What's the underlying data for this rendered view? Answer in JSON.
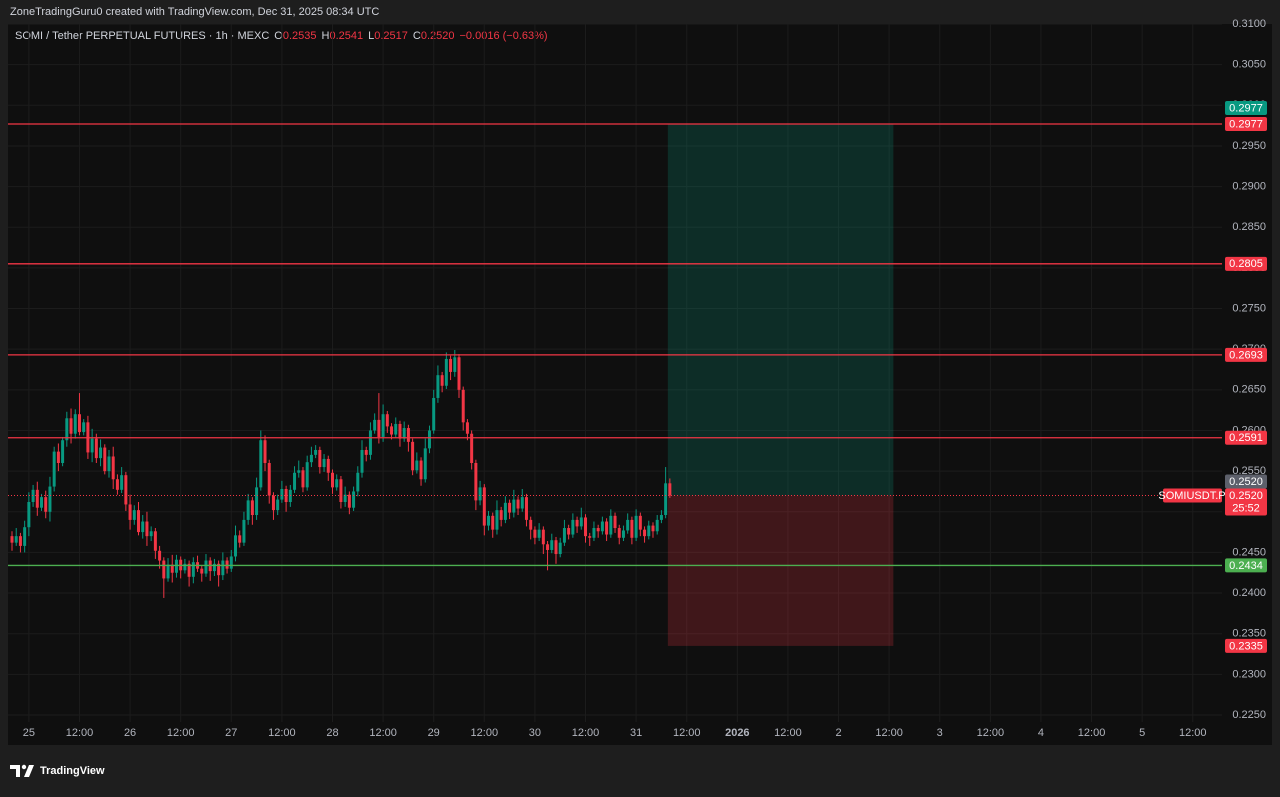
{
  "header": {
    "text": "ZoneTradingGuru0 created with TradingView.com, Dec 31, 2025 08:34 UTC"
  },
  "footer": {
    "brand": "TradingView"
  },
  "legend": {
    "symbol": "SOMI / Tether PERPETUAL FUTURES · 1h · MEXC",
    "fields": [
      {
        "label": "O",
        "value": "0.2535"
      },
      {
        "label": "H",
        "value": "0.2541"
      },
      {
        "label": "L",
        "value": "0.2517"
      },
      {
        "label": "C",
        "value": "0.2520"
      }
    ],
    "change": "−0.0016 (−0.63%)"
  },
  "chart_data": {
    "type": "candlestick",
    "up_color": "#089981",
    "down_color": "#f23645",
    "grid": true,
    "ylim": [
      0.225,
      0.31
    ],
    "yticks": [
      {
        "value": 0.225,
        "label": "0.2250"
      },
      {
        "value": 0.23,
        "label": "0.2300"
      },
      {
        "value": 0.235,
        "label": "0.2350"
      },
      {
        "value": 0.24,
        "label": "0.2400"
      },
      {
        "value": 0.245,
        "label": "0.2450"
      },
      {
        "value": 0.25,
        "label": "0.2500"
      },
      {
        "value": 0.255,
        "label": "0.2550"
      },
      {
        "value": 0.26,
        "label": "0.2600"
      },
      {
        "value": 0.265,
        "label": "0.2650"
      },
      {
        "value": 0.27,
        "label": "0.2700"
      },
      {
        "value": 0.275,
        "label": "0.2750"
      },
      {
        "value": 0.28,
        "label": "0.2800"
      },
      {
        "value": 0.285,
        "label": "0.2850"
      },
      {
        "value": 0.29,
        "label": "0.2900"
      },
      {
        "value": 0.295,
        "label": "0.2950"
      },
      {
        "value": 0.3,
        "label": "0.3000"
      },
      {
        "value": 0.305,
        "label": "0.3050"
      },
      {
        "value": 0.31,
        "label": "0.3100"
      }
    ],
    "time_labels": [
      "25",
      "12:00",
      "26",
      "12:00",
      "27",
      "12:00",
      "28",
      "12:00",
      "29",
      "12:00",
      "30",
      "12:00",
      "31",
      "12:00",
      "2026",
      "12:00",
      "2",
      "12:00",
      "3",
      "12:00",
      "4",
      "12:00",
      "5",
      "12:00"
    ],
    "ohlc": [
      [
        0.247,
        0.2476,
        0.2452,
        0.2462
      ],
      [
        0.2462,
        0.248,
        0.2458,
        0.247
      ],
      [
        0.247,
        0.2474,
        0.245,
        0.2458
      ],
      [
        0.2458,
        0.2489,
        0.245,
        0.2481
      ],
      [
        0.2481,
        0.2524,
        0.247,
        0.2512
      ],
      [
        0.2512,
        0.2533,
        0.2506,
        0.2527
      ],
      [
        0.2527,
        0.2537,
        0.2495,
        0.2505
      ],
      [
        0.2505,
        0.2522,
        0.2501,
        0.2518
      ],
      [
        0.2518,
        0.2526,
        0.2492,
        0.25
      ],
      [
        0.25,
        0.2543,
        0.2488,
        0.2531
      ],
      [
        0.2531,
        0.258,
        0.2525,
        0.2574
      ],
      [
        0.2574,
        0.2584,
        0.255,
        0.256
      ],
      [
        0.256,
        0.2592,
        0.2556,
        0.2588
      ],
      [
        0.2588,
        0.2623,
        0.258,
        0.2615
      ],
      [
        0.2615,
        0.2627,
        0.2584,
        0.2596
      ],
      [
        0.2596,
        0.2626,
        0.259,
        0.262
      ],
      [
        0.262,
        0.2646,
        0.2594,
        0.2598
      ],
      [
        0.2598,
        0.2614,
        0.2594,
        0.261
      ],
      [
        0.261,
        0.2618,
        0.2565,
        0.2573
      ],
      [
        0.2573,
        0.2602,
        0.2561,
        0.259
      ],
      [
        0.259,
        0.2596,
        0.256,
        0.2566
      ],
      [
        0.2566,
        0.2589,
        0.2556,
        0.2579
      ],
      [
        0.2579,
        0.2583,
        0.2546,
        0.255
      ],
      [
        0.255,
        0.2576,
        0.2542,
        0.2568
      ],
      [
        0.2568,
        0.258,
        0.2528,
        0.254
      ],
      [
        0.254,
        0.2546,
        0.2521,
        0.2527
      ],
      [
        0.2527,
        0.2555,
        0.2523,
        0.2545
      ],
      [
        0.2545,
        0.2549,
        0.2501,
        0.2509
      ],
      [
        0.2509,
        0.2521,
        0.2478,
        0.249
      ],
      [
        0.249,
        0.2508,
        0.2484,
        0.2502
      ],
      [
        0.2502,
        0.2512,
        0.2471,
        0.2475
      ],
      [
        0.2475,
        0.2496,
        0.2467,
        0.2488
      ],
      [
        0.2488,
        0.25,
        0.2458,
        0.247
      ],
      [
        0.247,
        0.2482,
        0.2464,
        0.2476
      ],
      [
        0.2476,
        0.248,
        0.2442,
        0.2452
      ],
      [
        0.2452,
        0.2458,
        0.243,
        0.244
      ],
      [
        0.244,
        0.2444,
        0.2394,
        0.2418
      ],
      [
        0.2418,
        0.2443,
        0.2414,
        0.2435
      ],
      [
        0.2435,
        0.2447,
        0.2413,
        0.2425
      ],
      [
        0.2425,
        0.2447,
        0.2419,
        0.2441
      ],
      [
        0.2441,
        0.2445,
        0.2418,
        0.2428
      ],
      [
        0.2428,
        0.2442,
        0.2424,
        0.2436
      ],
      [
        0.2436,
        0.244,
        0.2408,
        0.242
      ],
      [
        0.242,
        0.2444,
        0.2412,
        0.2438
      ],
      [
        0.2438,
        0.2446,
        0.2426,
        0.243
      ],
      [
        0.243,
        0.2434,
        0.2414,
        0.2424
      ],
      [
        0.2424,
        0.2448,
        0.242,
        0.244
      ],
      [
        0.244,
        0.2444,
        0.2415,
        0.2427
      ],
      [
        0.2427,
        0.2442,
        0.2421,
        0.2436
      ],
      [
        0.2436,
        0.244,
        0.2408,
        0.2422
      ],
      [
        0.2422,
        0.245,
        0.2416,
        0.244
      ],
      [
        0.244,
        0.2444,
        0.2424,
        0.243
      ],
      [
        0.243,
        0.2453,
        0.2426,
        0.2445
      ],
      [
        0.2445,
        0.2483,
        0.2439,
        0.2471
      ],
      [
        0.2471,
        0.2477,
        0.2456,
        0.2462
      ],
      [
        0.2462,
        0.25,
        0.2458,
        0.249
      ],
      [
        0.249,
        0.2522,
        0.2484,
        0.2514
      ],
      [
        0.2514,
        0.2518,
        0.2484,
        0.2496
      ],
      [
        0.2496,
        0.2542,
        0.249,
        0.253
      ],
      [
        0.253,
        0.26,
        0.2526,
        0.2588
      ],
      [
        0.2588,
        0.2594,
        0.255,
        0.256
      ],
      [
        0.256,
        0.2564,
        0.251,
        0.252
      ],
      [
        0.252,
        0.2524,
        0.249,
        0.2502
      ],
      [
        0.2502,
        0.2521,
        0.2496,
        0.2515
      ],
      [
        0.2515,
        0.2538,
        0.2511,
        0.2528
      ],
      [
        0.2528,
        0.2532,
        0.25,
        0.2512
      ],
      [
        0.2512,
        0.2533,
        0.2506,
        0.2527
      ],
      [
        0.2527,
        0.2556,
        0.2523,
        0.2548
      ],
      [
        0.2548,
        0.2563,
        0.2542,
        0.2551
      ],
      [
        0.2551,
        0.2555,
        0.2524,
        0.253
      ],
      [
        0.253,
        0.2569,
        0.2526,
        0.2561
      ],
      [
        0.2561,
        0.258,
        0.2555,
        0.257
      ],
      [
        0.257,
        0.2582,
        0.2566,
        0.2576
      ],
      [
        0.2576,
        0.258,
        0.2547,
        0.2555
      ],
      [
        0.2555,
        0.2571,
        0.2549,
        0.2565
      ],
      [
        0.2565,
        0.2569,
        0.2538,
        0.2548
      ],
      [
        0.2548,
        0.2552,
        0.2522,
        0.253
      ],
      [
        0.253,
        0.2546,
        0.2526,
        0.254
      ],
      [
        0.254,
        0.2544,
        0.2504,
        0.2512
      ],
      [
        0.2512,
        0.2531,
        0.2506,
        0.2521
      ],
      [
        0.2521,
        0.2525,
        0.2497,
        0.2505
      ],
      [
        0.2505,
        0.2531,
        0.2501,
        0.2525
      ],
      [
        0.2525,
        0.2556,
        0.2519,
        0.2548
      ],
      [
        0.2548,
        0.2588,
        0.2542,
        0.2576
      ],
      [
        0.2576,
        0.258,
        0.2562,
        0.257
      ],
      [
        0.257,
        0.261,
        0.2564,
        0.26
      ],
      [
        0.26,
        0.2621,
        0.2596,
        0.2613
      ],
      [
        0.2613,
        0.2646,
        0.2584,
        0.2592
      ],
      [
        0.2592,
        0.2632,
        0.2586,
        0.262
      ],
      [
        0.262,
        0.2624,
        0.2597,
        0.2605
      ],
      [
        0.2605,
        0.2609,
        0.2589,
        0.2595
      ],
      [
        0.2595,
        0.2616,
        0.2591,
        0.2608
      ],
      [
        0.2608,
        0.2612,
        0.258,
        0.259
      ],
      [
        0.259,
        0.2611,
        0.2586,
        0.2603
      ],
      [
        0.2603,
        0.2607,
        0.2574,
        0.2586
      ],
      [
        0.2586,
        0.259,
        0.2545,
        0.2551
      ],
      [
        0.2551,
        0.2573,
        0.2547,
        0.2563
      ],
      [
        0.2563,
        0.2567,
        0.2532,
        0.254
      ],
      [
        0.254,
        0.259,
        0.2536,
        0.2578
      ],
      [
        0.2578,
        0.2606,
        0.2572,
        0.26
      ],
      [
        0.26,
        0.265,
        0.2596,
        0.264
      ],
      [
        0.264,
        0.268,
        0.2634,
        0.2668
      ],
      [
        0.2668,
        0.2672,
        0.2647,
        0.2655
      ],
      [
        0.2655,
        0.2696,
        0.2651,
        0.2688
      ],
      [
        0.2688,
        0.2692,
        0.2662,
        0.2672
      ],
      [
        0.2672,
        0.2699,
        0.2666,
        0.269
      ],
      [
        0.269,
        0.2694,
        0.264,
        0.265
      ],
      [
        0.265,
        0.2654,
        0.26,
        0.261
      ],
      [
        0.261,
        0.2614,
        0.2588,
        0.2596
      ],
      [
        0.2596,
        0.26,
        0.2552,
        0.256
      ],
      [
        0.256,
        0.2564,
        0.2502,
        0.2514
      ],
      [
        0.2514,
        0.2538,
        0.2508,
        0.253
      ],
      [
        0.253,
        0.2534,
        0.2471,
        0.2483
      ],
      [
        0.2483,
        0.2501,
        0.2477,
        0.2495
      ],
      [
        0.2495,
        0.2499,
        0.2468,
        0.2478
      ],
      [
        0.2478,
        0.2514,
        0.2472,
        0.2502
      ],
      [
        0.2502,
        0.2506,
        0.2482,
        0.249
      ],
      [
        0.249,
        0.2519,
        0.2486,
        0.2511
      ],
      [
        0.2511,
        0.2515,
        0.2491,
        0.2499
      ],
      [
        0.2499,
        0.2527,
        0.2493,
        0.2515
      ],
      [
        0.2515,
        0.2519,
        0.2496,
        0.2504
      ],
      [
        0.2504,
        0.2528,
        0.25,
        0.2518
      ],
      [
        0.2518,
        0.2522,
        0.2482,
        0.249
      ],
      [
        0.249,
        0.2494,
        0.2466,
        0.2478
      ],
      [
        0.2478,
        0.2482,
        0.246,
        0.2468
      ],
      [
        0.2468,
        0.2486,
        0.2464,
        0.2478
      ],
      [
        0.2478,
        0.2482,
        0.2448,
        0.246
      ],
      [
        0.246,
        0.2464,
        0.2428,
        0.2453
      ],
      [
        0.2453,
        0.2473,
        0.2449,
        0.2465
      ],
      [
        0.2465,
        0.2469,
        0.2436,
        0.2448
      ],
      [
        0.2448,
        0.2468,
        0.2444,
        0.2462
      ],
      [
        0.2462,
        0.249,
        0.2458,
        0.248
      ],
      [
        0.248,
        0.2484,
        0.2466,
        0.2472
      ],
      [
        0.2472,
        0.2498,
        0.2468,
        0.249
      ],
      [
        0.249,
        0.2494,
        0.2474,
        0.2482
      ],
      [
        0.2482,
        0.2505,
        0.2478,
        0.2493
      ],
      [
        0.2493,
        0.2497,
        0.2462,
        0.247
      ],
      [
        0.247,
        0.2474,
        0.2458,
        0.2468
      ],
      [
        0.2468,
        0.2488,
        0.2464,
        0.248
      ],
      [
        0.248,
        0.2484,
        0.2468,
        0.2476
      ],
      [
        0.2476,
        0.2494,
        0.2472,
        0.2488
      ],
      [
        0.2488,
        0.2492,
        0.2464,
        0.2472
      ],
      [
        0.2472,
        0.2503,
        0.2468,
        0.2495
      ],
      [
        0.2495,
        0.2499,
        0.2474,
        0.248
      ],
      [
        0.248,
        0.2484,
        0.246,
        0.2468
      ],
      [
        0.2468,
        0.2483,
        0.2464,
        0.2477
      ],
      [
        0.2477,
        0.2498,
        0.2473,
        0.249
      ],
      [
        0.249,
        0.2494,
        0.246,
        0.2468
      ],
      [
        0.2468,
        0.2503,
        0.2464,
        0.2495
      ],
      [
        0.2495,
        0.2499,
        0.247,
        0.2478
      ],
      [
        0.2478,
        0.2482,
        0.2462,
        0.247
      ],
      [
        0.247,
        0.2489,
        0.2466,
        0.2483
      ],
      [
        0.2483,
        0.2487,
        0.2468,
        0.2476
      ],
      [
        0.2476,
        0.2496,
        0.2472,
        0.249
      ],
      [
        0.249,
        0.2502,
        0.2486,
        0.2496
      ],
      [
        0.2496,
        0.2555,
        0.2492,
        0.2535
      ],
      [
        0.2535,
        0.2541,
        0.2517,
        0.252
      ]
    ],
    "levels": [
      {
        "value": 0.2977,
        "color": "#f23645"
      },
      {
        "value": 0.2805,
        "color": "#f23645"
      },
      {
        "value": 0.2693,
        "color": "#f23645"
      },
      {
        "value": 0.2591,
        "color": "#f23645"
      },
      {
        "value": 0.2434,
        "color": "#4caf50"
      }
    ],
    "position": {
      "entry": {
        "value": 0.252,
        "label": "0.2520"
      },
      "target": 0.2977,
      "stop": 0.2335,
      "profit_color": "#089981",
      "loss_color": "#f23645"
    },
    "last_price": {
      "symbol": "SOMIUSDT.P",
      "value": 0.252,
      "label": "0.2520",
      "countdown": "25:52"
    }
  }
}
